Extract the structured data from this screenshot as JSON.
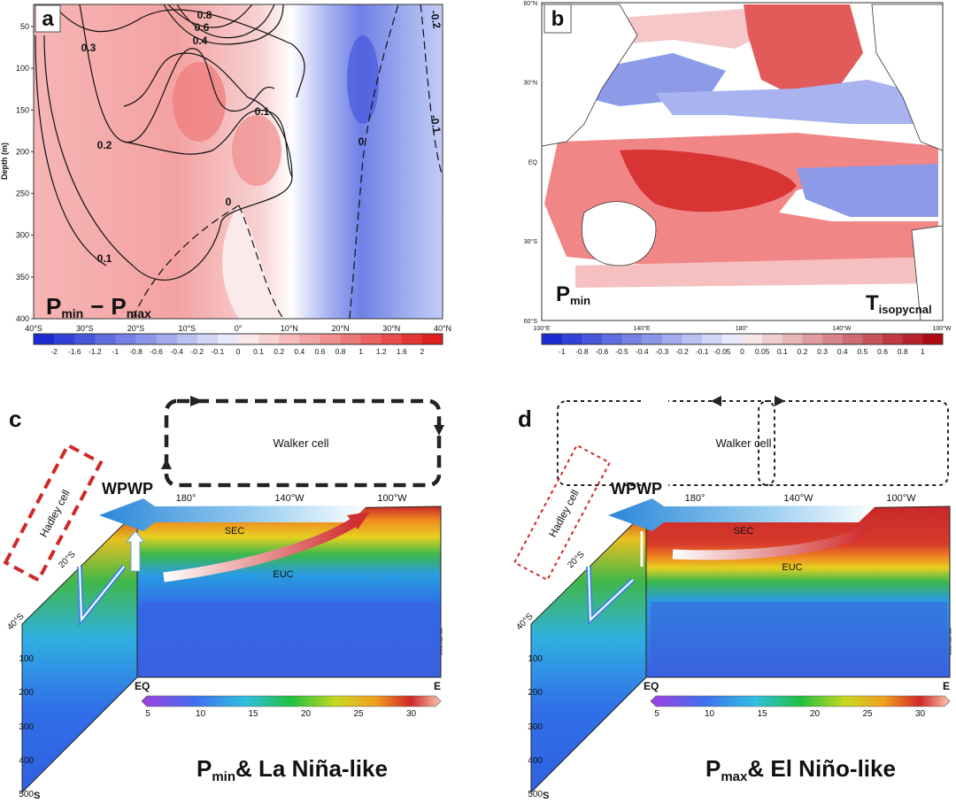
{
  "panels": {
    "a": {
      "label": "a",
      "y_axis_label": "Depth (m)",
      "y_ticks": [
        "50",
        "100",
        "150",
        "200",
        "250",
        "300",
        "350",
        "400"
      ],
      "x_ticks": [
        "40°S",
        "30°S",
        "20°S",
        "10°S",
        "0°",
        "10°N",
        "20°N",
        "30°N",
        "40°N"
      ],
      "contour_labels": [
        "0.8",
        "0.6",
        "0.4",
        "0.3",
        "0.1",
        "0.2",
        "0.1",
        "0",
        "0",
        "-0.2",
        "-0.1"
      ],
      "title": {
        "p1": "P",
        "s1": "min",
        "op": "−",
        "p2": "P",
        "s2": "max"
      },
      "colorbar_ticks": [
        "-2",
        "-1.6",
        "-1.2",
        "-1",
        "-0.8",
        "-0.6",
        "-0.4",
        "-0.2",
        "-0.1",
        "0",
        "0.1",
        "0.2",
        "0.4",
        "0.6",
        "0.8",
        "1",
        "1.2",
        "1.6",
        "2"
      ]
    },
    "b": {
      "label": "b",
      "lat_ticks": [
        "60°N",
        "30°N",
        "EQ",
        "30°S",
        "60°S"
      ],
      "lon_ticks": [
        "100°E",
        "140°E",
        "180°",
        "140°W",
        "100°W"
      ],
      "left_text": {
        "main": "P",
        "sub": "min"
      },
      "right_text": {
        "main": "T",
        "sub": "isopycnal"
      },
      "colorbar_ticks": [
        "-1",
        "-0.8",
        "-0.6",
        "-0.5",
        "-0.4",
        "-0.3",
        "-0.2",
        "-0.1",
        "-0.05",
        "0",
        "0.05",
        "0.1",
        "0.2",
        "0.3",
        "0.4",
        "0.5",
        "0.6",
        "0.8",
        "1"
      ]
    },
    "c": {
      "label": "c",
      "walker": "Walker cell",
      "hadley": "Hadley cell",
      "wpwp": "WPWP",
      "lon_ticks": [
        "180°",
        "140°W",
        "100°W"
      ],
      "sec": "SEC",
      "euc": "EUC",
      "lat_ticks": [
        "20°S",
        "40°S"
      ],
      "depth_ticks": [
        "100",
        "200",
        "300",
        "400",
        "500"
      ],
      "south": "S",
      "eq": "EQ",
      "east": "E",
      "colorbar_ticks": [
        "5",
        "10",
        "15",
        "20",
        "25",
        "30"
      ],
      "caption": {
        "main": "P",
        "sub": "min",
        "rest": "& La Niña-like"
      },
      "credit": "Ocean Data View"
    },
    "d": {
      "label": "d",
      "walker": "Walker cell",
      "hadley": "Hadley cell",
      "wpwp": "WPWP",
      "lon_ticks": [
        "180°",
        "140°W",
        "100°W"
      ],
      "sec": "SEC",
      "euc": "EUC",
      "lat_ticks": [
        "20°S",
        "40°S"
      ],
      "depth_ticks": [
        "100",
        "200",
        "300",
        "400",
        "500"
      ],
      "south": "S",
      "eq": "EQ",
      "east": "E",
      "colorbar_ticks": [
        "5",
        "10",
        "15",
        "20",
        "25",
        "30"
      ],
      "caption": {
        "main": "P",
        "sub": "max",
        "rest": "& El Niño-like"
      },
      "credit": "Ocean Data View"
    }
  }
}
